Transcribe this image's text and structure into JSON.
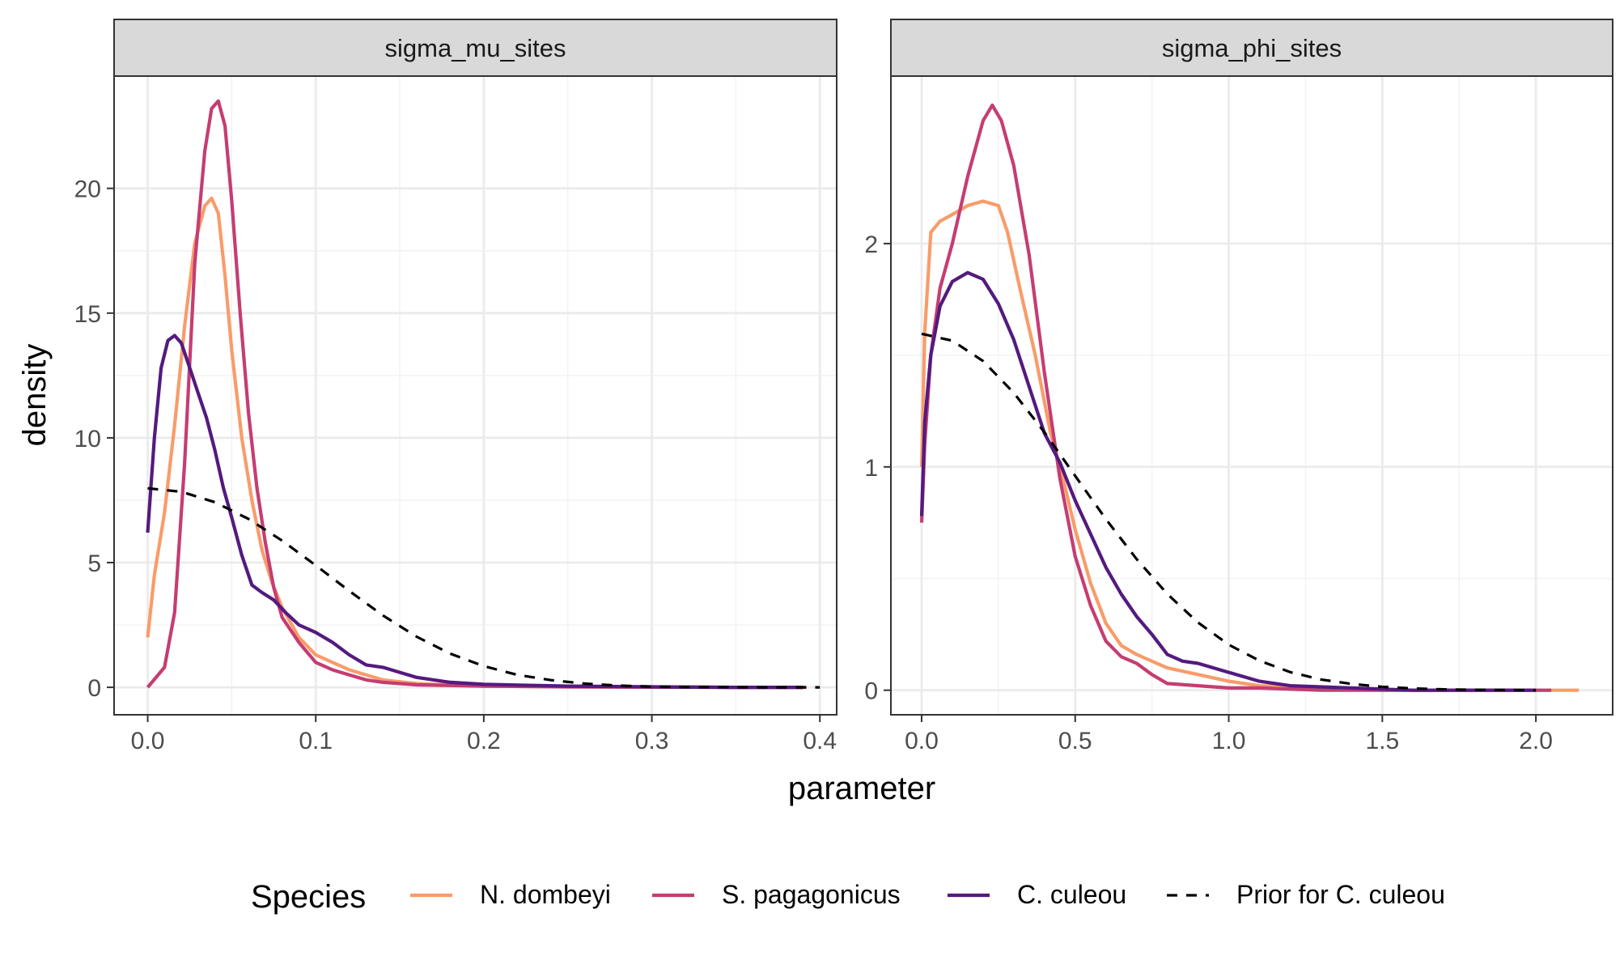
{
  "chart_data": {
    "type": "line",
    "xlabel": "parameter",
    "ylabel": "density",
    "legend": {
      "title": "Species",
      "placement": "bottom",
      "entries": [
        "N. dombeyi",
        "S. pagagonicus",
        "C. culeou",
        "Prior for C. culeou"
      ]
    },
    "colors": {
      "N. dombeyi": "#F89C6A",
      "S. pagagonicus": "#C53D72",
      "C. culeou": "#541A7F",
      "Prior for C. culeou": "#000000"
    },
    "panels": [
      {
        "strip": "sigma_mu_sites",
        "xlim": [
          -0.02,
          0.41
        ],
        "ylim": [
          -1.1,
          24.5
        ],
        "xticks": [
          0.0,
          0.1,
          0.2,
          0.3,
          0.4
        ],
        "xtick_labels": [
          "0.0",
          "0.1",
          "0.2",
          "0.3",
          "0.4"
        ],
        "yticks": [
          0,
          5,
          10,
          15,
          20
        ],
        "ytick_labels": [
          "0",
          "5",
          "10",
          "15",
          "20"
        ],
        "grid": true,
        "series": [
          {
            "name": "N. dombeyi",
            "style": "solid",
            "x": [
              0.0,
              0.004,
              0.01,
              0.016,
              0.022,
              0.028,
              0.034,
              0.038,
              0.042,
              0.046,
              0.05,
              0.056,
              0.062,
              0.068,
              0.074,
              0.08,
              0.09,
              0.1,
              0.11,
              0.12,
              0.13,
              0.14,
              0.16,
              0.2,
              0.25,
              0.3,
              0.35,
              0.392
            ],
            "y": [
              2.0,
              4.5,
              7.0,
              10.5,
              14.5,
              17.8,
              19.3,
              19.6,
              19.0,
              16.5,
              13.5,
              10.0,
              7.5,
              5.5,
              4.2,
              3.2,
              2.0,
              1.3,
              1.0,
              0.7,
              0.5,
              0.3,
              0.15,
              0.05,
              0.02,
              0.01,
              0.0,
              0.0
            ]
          },
          {
            "name": "S. pagagonicus",
            "style": "solid",
            "x": [
              0.0,
              0.01,
              0.016,
              0.022,
              0.028,
              0.034,
              0.038,
              0.042,
              0.046,
              0.05,
              0.055,
              0.06,
              0.065,
              0.07,
              0.075,
              0.08,
              0.09,
              0.1,
              0.11,
              0.12,
              0.13,
              0.14,
              0.16,
              0.2,
              0.25,
              0.3,
              0.35,
              0.39
            ],
            "y": [
              0.0,
              0.8,
              3.0,
              9.0,
              17.0,
              21.5,
              23.2,
              23.5,
              22.5,
              19.5,
              15.0,
              11.0,
              8.0,
              5.8,
              4.0,
              2.8,
              1.8,
              1.0,
              0.7,
              0.5,
              0.3,
              0.2,
              0.1,
              0.05,
              0.02,
              0.01,
              0.0,
              0.0
            ]
          },
          {
            "name": "C. culeou",
            "style": "solid",
            "x": [
              0.0,
              0.004,
              0.008,
              0.012,
              0.016,
              0.02,
              0.025,
              0.03,
              0.035,
              0.04,
              0.045,
              0.05,
              0.056,
              0.062,
              0.068,
              0.075,
              0.082,
              0.09,
              0.1,
              0.11,
              0.12,
              0.13,
              0.14,
              0.15,
              0.16,
              0.18,
              0.2,
              0.25,
              0.3,
              0.35,
              0.39
            ],
            "y": [
              6.2,
              10.0,
              12.8,
              13.9,
              14.1,
              13.8,
              12.8,
              11.8,
              10.8,
              9.5,
              8.0,
              6.8,
              5.3,
              4.1,
              3.8,
              3.5,
              3.0,
              2.5,
              2.2,
              1.8,
              1.3,
              0.9,
              0.8,
              0.6,
              0.4,
              0.2,
              0.12,
              0.05,
              0.02,
              0.0,
              0.0
            ]
          },
          {
            "name": "Prior for C. culeou",
            "style": "dashed",
            "x": [
              0.0,
              0.02,
              0.04,
              0.06,
              0.08,
              0.1,
              0.12,
              0.14,
              0.16,
              0.18,
              0.2,
              0.22,
              0.24,
              0.26,
              0.28,
              0.3,
              0.32,
              0.34,
              0.36,
              0.38,
              0.4
            ],
            "y": [
              7.98,
              7.84,
              7.42,
              6.75,
              5.88,
              4.89,
              3.86,
              2.88,
              2.03,
              1.35,
              0.85,
              0.5,
              0.29,
              0.15,
              0.07,
              0.03,
              0.01,
              0.01,
              0.0,
              0.0,
              0.0
            ]
          }
        ]
      },
      {
        "strip": "sigma_phi_sites",
        "xlim": [
          -0.1,
          2.25
        ],
        "ylim": [
          -0.11,
          2.75
        ],
        "xticks": [
          0.0,
          0.5,
          1.0,
          1.5,
          2.0
        ],
        "xtick_labels": [
          "0.0",
          "0.5",
          "1.0",
          "1.5",
          "2.0"
        ],
        "yticks": [
          0,
          1,
          2
        ],
        "ytick_labels": [
          "0",
          "1",
          "2"
        ],
        "grid": true,
        "series": [
          {
            "name": "N. dombeyi",
            "style": "solid",
            "x": [
              0.0,
              0.01,
              0.03,
              0.06,
              0.1,
              0.15,
              0.2,
              0.25,
              0.28,
              0.32,
              0.37,
              0.42,
              0.46,
              0.5,
              0.55,
              0.6,
              0.65,
              0.7,
              0.8,
              0.9,
              1.0,
              1.1,
              1.3,
              1.5,
              1.7,
              2.0,
              2.14
            ],
            "y": [
              1.0,
              1.6,
              2.05,
              2.1,
              2.13,
              2.17,
              2.19,
              2.17,
              2.05,
              1.8,
              1.5,
              1.15,
              0.95,
              0.72,
              0.48,
              0.3,
              0.2,
              0.16,
              0.1,
              0.07,
              0.04,
              0.02,
              0.01,
              0.0,
              0.0,
              0.0,
              0.0
            ]
          },
          {
            "name": "S. pagagonicus",
            "style": "solid",
            "x": [
              0.0,
              0.01,
              0.03,
              0.06,
              0.1,
              0.15,
              0.2,
              0.23,
              0.26,
              0.3,
              0.35,
              0.4,
              0.45,
              0.5,
              0.55,
              0.6,
              0.65,
              0.7,
              0.75,
              0.8,
              0.9,
              1.0,
              1.1,
              1.3,
              1.5,
              2.0,
              2.05
            ],
            "y": [
              0.75,
              1.1,
              1.5,
              1.8,
              2.0,
              2.3,
              2.55,
              2.62,
              2.55,
              2.35,
              1.95,
              1.42,
              0.95,
              0.6,
              0.38,
              0.22,
              0.15,
              0.12,
              0.07,
              0.03,
              0.02,
              0.01,
              0.01,
              0.0,
              0.0,
              0.0,
              0.0
            ]
          },
          {
            "name": "C. culeou",
            "style": "solid",
            "x": [
              0.0,
              0.01,
              0.03,
              0.06,
              0.1,
              0.15,
              0.2,
              0.25,
              0.3,
              0.35,
              0.4,
              0.45,
              0.5,
              0.55,
              0.6,
              0.65,
              0.7,
              0.75,
              0.8,
              0.85,
              0.9,
              1.0,
              1.1,
              1.2,
              1.4,
              1.6,
              2.0
            ],
            "y": [
              0.78,
              1.2,
              1.5,
              1.72,
              1.83,
              1.87,
              1.84,
              1.73,
              1.57,
              1.36,
              1.15,
              1.02,
              0.85,
              0.7,
              0.55,
              0.43,
              0.33,
              0.25,
              0.16,
              0.13,
              0.12,
              0.08,
              0.04,
              0.02,
              0.01,
              0.0,
              0.0
            ]
          },
          {
            "name": "Prior for C. culeou",
            "style": "dashed",
            "x": [
              0.0,
              0.1,
              0.2,
              0.3,
              0.4,
              0.5,
              0.6,
              0.7,
              0.8,
              0.9,
              1.0,
              1.1,
              1.2,
              1.3,
              1.4,
              1.5,
              1.6,
              1.7,
              1.8,
              1.9,
              2.0
            ],
            "y": [
              1.596,
              1.565,
              1.474,
              1.332,
              1.155,
              0.96,
              0.766,
              0.587,
              0.431,
              0.303,
              0.204,
              0.132,
              0.081,
              0.048,
              0.028,
              0.015,
              0.008,
              0.004,
              0.002,
              0.001,
              0.0
            ]
          }
        ]
      }
    ]
  }
}
